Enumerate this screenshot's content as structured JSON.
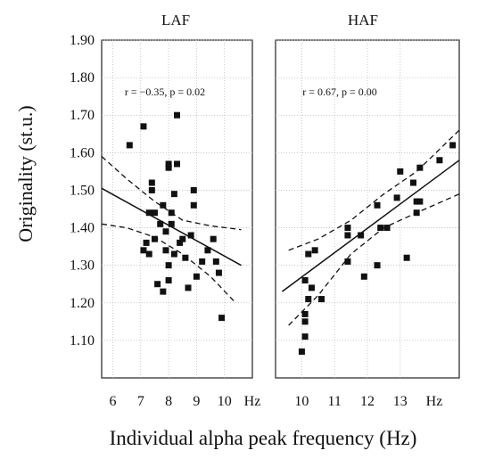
{
  "figure": {
    "ylabel": "Originality (st.u.)",
    "xlabel": "Individual alpha peak frequency (Hz)"
  },
  "chart_data": [
    {
      "type": "scatter",
      "title": "LAF",
      "unit_label": "Hz",
      "annotation": "r = −0.35, p = 0.02",
      "xlim": [
        5.6,
        11.0
      ],
      "ylim": [
        1.0,
        1.9
      ],
      "x_ticks": [
        "6",
        "7",
        "8",
        "9",
        "10"
      ],
      "y_ticks": [
        "1.10",
        "1.20",
        "1.30",
        "1.40",
        "1.50",
        "1.60",
        "1.70",
        "1.80",
        "1.90"
      ],
      "grid": true,
      "points": [
        {
          "x": 6.6,
          "y": 1.62
        },
        {
          "x": 7.1,
          "y": 1.67
        },
        {
          "x": 7.1,
          "y": 1.34
        },
        {
          "x": 7.2,
          "y": 1.36
        },
        {
          "x": 7.3,
          "y": 1.44
        },
        {
          "x": 7.3,
          "y": 1.33
        },
        {
          "x": 7.4,
          "y": 1.5
        },
        {
          "x": 7.4,
          "y": 1.52
        },
        {
          "x": 7.5,
          "y": 1.44
        },
        {
          "x": 7.5,
          "y": 1.37
        },
        {
          "x": 7.6,
          "y": 1.25
        },
        {
          "x": 7.7,
          "y": 1.41
        },
        {
          "x": 7.8,
          "y": 1.23
        },
        {
          "x": 7.8,
          "y": 1.46
        },
        {
          "x": 7.9,
          "y": 1.39
        },
        {
          "x": 7.9,
          "y": 1.34
        },
        {
          "x": 8.0,
          "y": 1.57
        },
        {
          "x": 8.0,
          "y": 1.56
        },
        {
          "x": 8.0,
          "y": 1.3
        },
        {
          "x": 8.0,
          "y": 1.26
        },
        {
          "x": 8.1,
          "y": 1.41
        },
        {
          "x": 8.1,
          "y": 1.44
        },
        {
          "x": 8.2,
          "y": 1.49
        },
        {
          "x": 8.2,
          "y": 1.33
        },
        {
          "x": 8.3,
          "y": 1.7
        },
        {
          "x": 8.3,
          "y": 1.57
        },
        {
          "x": 8.4,
          "y": 1.36
        },
        {
          "x": 8.5,
          "y": 1.37
        },
        {
          "x": 8.6,
          "y": 1.32
        },
        {
          "x": 8.7,
          "y": 1.24
        },
        {
          "x": 8.8,
          "y": 1.38
        },
        {
          "x": 8.9,
          "y": 1.5
        },
        {
          "x": 8.9,
          "y": 1.46
        },
        {
          "x": 9.0,
          "y": 1.27
        },
        {
          "x": 9.2,
          "y": 1.31
        },
        {
          "x": 9.4,
          "y": 1.34
        },
        {
          "x": 9.6,
          "y": 1.37
        },
        {
          "x": 9.7,
          "y": 1.31
        },
        {
          "x": 9.8,
          "y": 1.28
        },
        {
          "x": 9.9,
          "y": 1.16
        }
      ],
      "fit_line": [
        {
          "x": 5.6,
          "y": 1.505
        },
        {
          "x": 10.6,
          "y": 1.3
        }
      ],
      "ci_upper": [
        {
          "x": 5.6,
          "y": 1.59
        },
        {
          "x": 6.5,
          "y": 1.53
        },
        {
          "x": 7.5,
          "y": 1.47
        },
        {
          "x": 8.5,
          "y": 1.42
        },
        {
          "x": 9.5,
          "y": 1.405
        },
        {
          "x": 10.6,
          "y": 1.395
        }
      ],
      "ci_lower": [
        {
          "x": 5.6,
          "y": 1.41
        },
        {
          "x": 6.5,
          "y": 1.4
        },
        {
          "x": 7.5,
          "y": 1.375
        },
        {
          "x": 8.5,
          "y": 1.33
        },
        {
          "x": 9.5,
          "y": 1.27
        },
        {
          "x": 10.4,
          "y": 1.2
        }
      ]
    },
    {
      "type": "scatter",
      "title": "HAF",
      "unit_label": "Hz",
      "annotation": "r = 0.67, p = 0.00",
      "xlim": [
        9.2,
        14.8
      ],
      "ylim": [
        1.0,
        1.9
      ],
      "x_ticks": [
        "10",
        "11",
        "12",
        "13"
      ],
      "y_ticks": [],
      "grid": true,
      "points": [
        {
          "x": 10.0,
          "y": 1.07
        },
        {
          "x": 10.1,
          "y": 1.26
        },
        {
          "x": 10.1,
          "y": 1.17
        },
        {
          "x": 10.1,
          "y": 1.15
        },
        {
          "x": 10.1,
          "y": 1.11
        },
        {
          "x": 10.2,
          "y": 1.33
        },
        {
          "x": 10.2,
          "y": 1.21
        },
        {
          "x": 10.3,
          "y": 1.24
        },
        {
          "x": 10.4,
          "y": 1.34
        },
        {
          "x": 10.6,
          "y": 1.21
        },
        {
          "x": 11.4,
          "y": 1.4
        },
        {
          "x": 11.4,
          "y": 1.38
        },
        {
          "x": 11.4,
          "y": 1.31
        },
        {
          "x": 11.8,
          "y": 1.38
        },
        {
          "x": 11.9,
          "y": 1.27
        },
        {
          "x": 12.3,
          "y": 1.46
        },
        {
          "x": 12.3,
          "y": 1.3
        },
        {
          "x": 12.4,
          "y": 1.4
        },
        {
          "x": 12.6,
          "y": 1.4
        },
        {
          "x": 12.9,
          "y": 1.48
        },
        {
          "x": 13.0,
          "y": 1.55
        },
        {
          "x": 13.2,
          "y": 1.32
        },
        {
          "x": 13.4,
          "y": 1.52
        },
        {
          "x": 13.5,
          "y": 1.44
        },
        {
          "x": 13.5,
          "y": 1.47
        },
        {
          "x": 13.6,
          "y": 1.56
        },
        {
          "x": 13.6,
          "y": 1.47
        },
        {
          "x": 14.2,
          "y": 1.58
        },
        {
          "x": 14.6,
          "y": 1.62
        }
      ],
      "fit_line": [
        {
          "x": 9.4,
          "y": 1.23
        },
        {
          "x": 14.8,
          "y": 1.58
        }
      ],
      "ci_upper": [
        {
          "x": 9.6,
          "y": 1.34
        },
        {
          "x": 10.5,
          "y": 1.37
        },
        {
          "x": 11.5,
          "y": 1.42
        },
        {
          "x": 12.5,
          "y": 1.49
        },
        {
          "x": 13.5,
          "y": 1.55
        },
        {
          "x": 14.8,
          "y": 1.66
        }
      ],
      "ci_lower": [
        {
          "x": 9.6,
          "y": 1.14
        },
        {
          "x": 10.5,
          "y": 1.22
        },
        {
          "x": 11.5,
          "y": 1.33
        },
        {
          "x": 12.5,
          "y": 1.4
        },
        {
          "x": 13.5,
          "y": 1.44
        },
        {
          "x": 14.8,
          "y": 1.49
        }
      ]
    }
  ]
}
